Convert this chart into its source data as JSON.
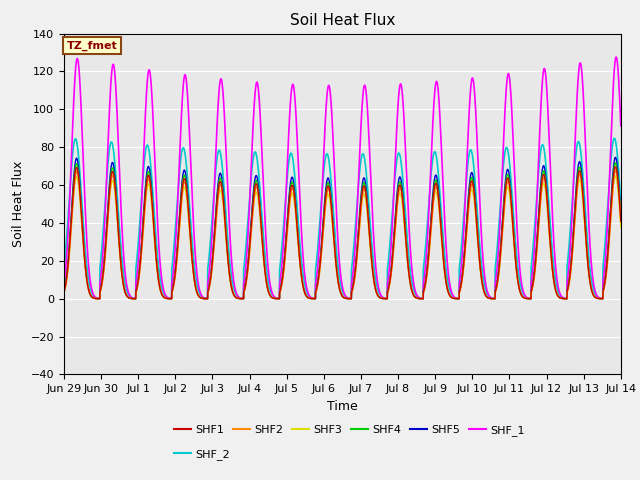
{
  "title": "Soil Heat Flux",
  "xlabel": "Time",
  "ylabel": "Soil Heat Flux",
  "ylim": [
    -40,
    140
  ],
  "yticks": [
    -40,
    -20,
    0,
    20,
    40,
    60,
    80,
    100,
    120,
    140
  ],
  "xtick_labels": [
    "Jun 29",
    "Jun 30",
    "Jul 1",
    "Jul 2",
    "Jul 3",
    "Jul 4",
    "Jul 5",
    "Jul 6",
    "Jul 7",
    "Jul 8",
    "Jul 9",
    "Jul 10",
    "Jul 11",
    "Jul 12",
    "Jul 13",
    "Jul 14"
  ],
  "annotation_text": "TZ_fmet",
  "annotation_box_color": "#ffffcc",
  "annotation_border_color": "#8B4513",
  "annotation_text_color": "#8B0000",
  "series": {
    "SHF1": {
      "color": "#cc0000",
      "lw": 1.0
    },
    "SHF2": {
      "color": "#ff8800",
      "lw": 1.0
    },
    "SHF3": {
      "color": "#dddd00",
      "lw": 1.0
    },
    "SHF4": {
      "color": "#00cc00",
      "lw": 1.0
    },
    "SHF5": {
      "color": "#0000cc",
      "lw": 1.0
    },
    "SHF_1": {
      "color": "#ff00ff",
      "lw": 1.2
    },
    "SHF_2": {
      "color": "#00cccc",
      "lw": 1.2
    }
  },
  "bg_color": "#e8e8e8",
  "grid_color": "#ffffff",
  "n_days": 15.5,
  "pts_per_day": 240
}
